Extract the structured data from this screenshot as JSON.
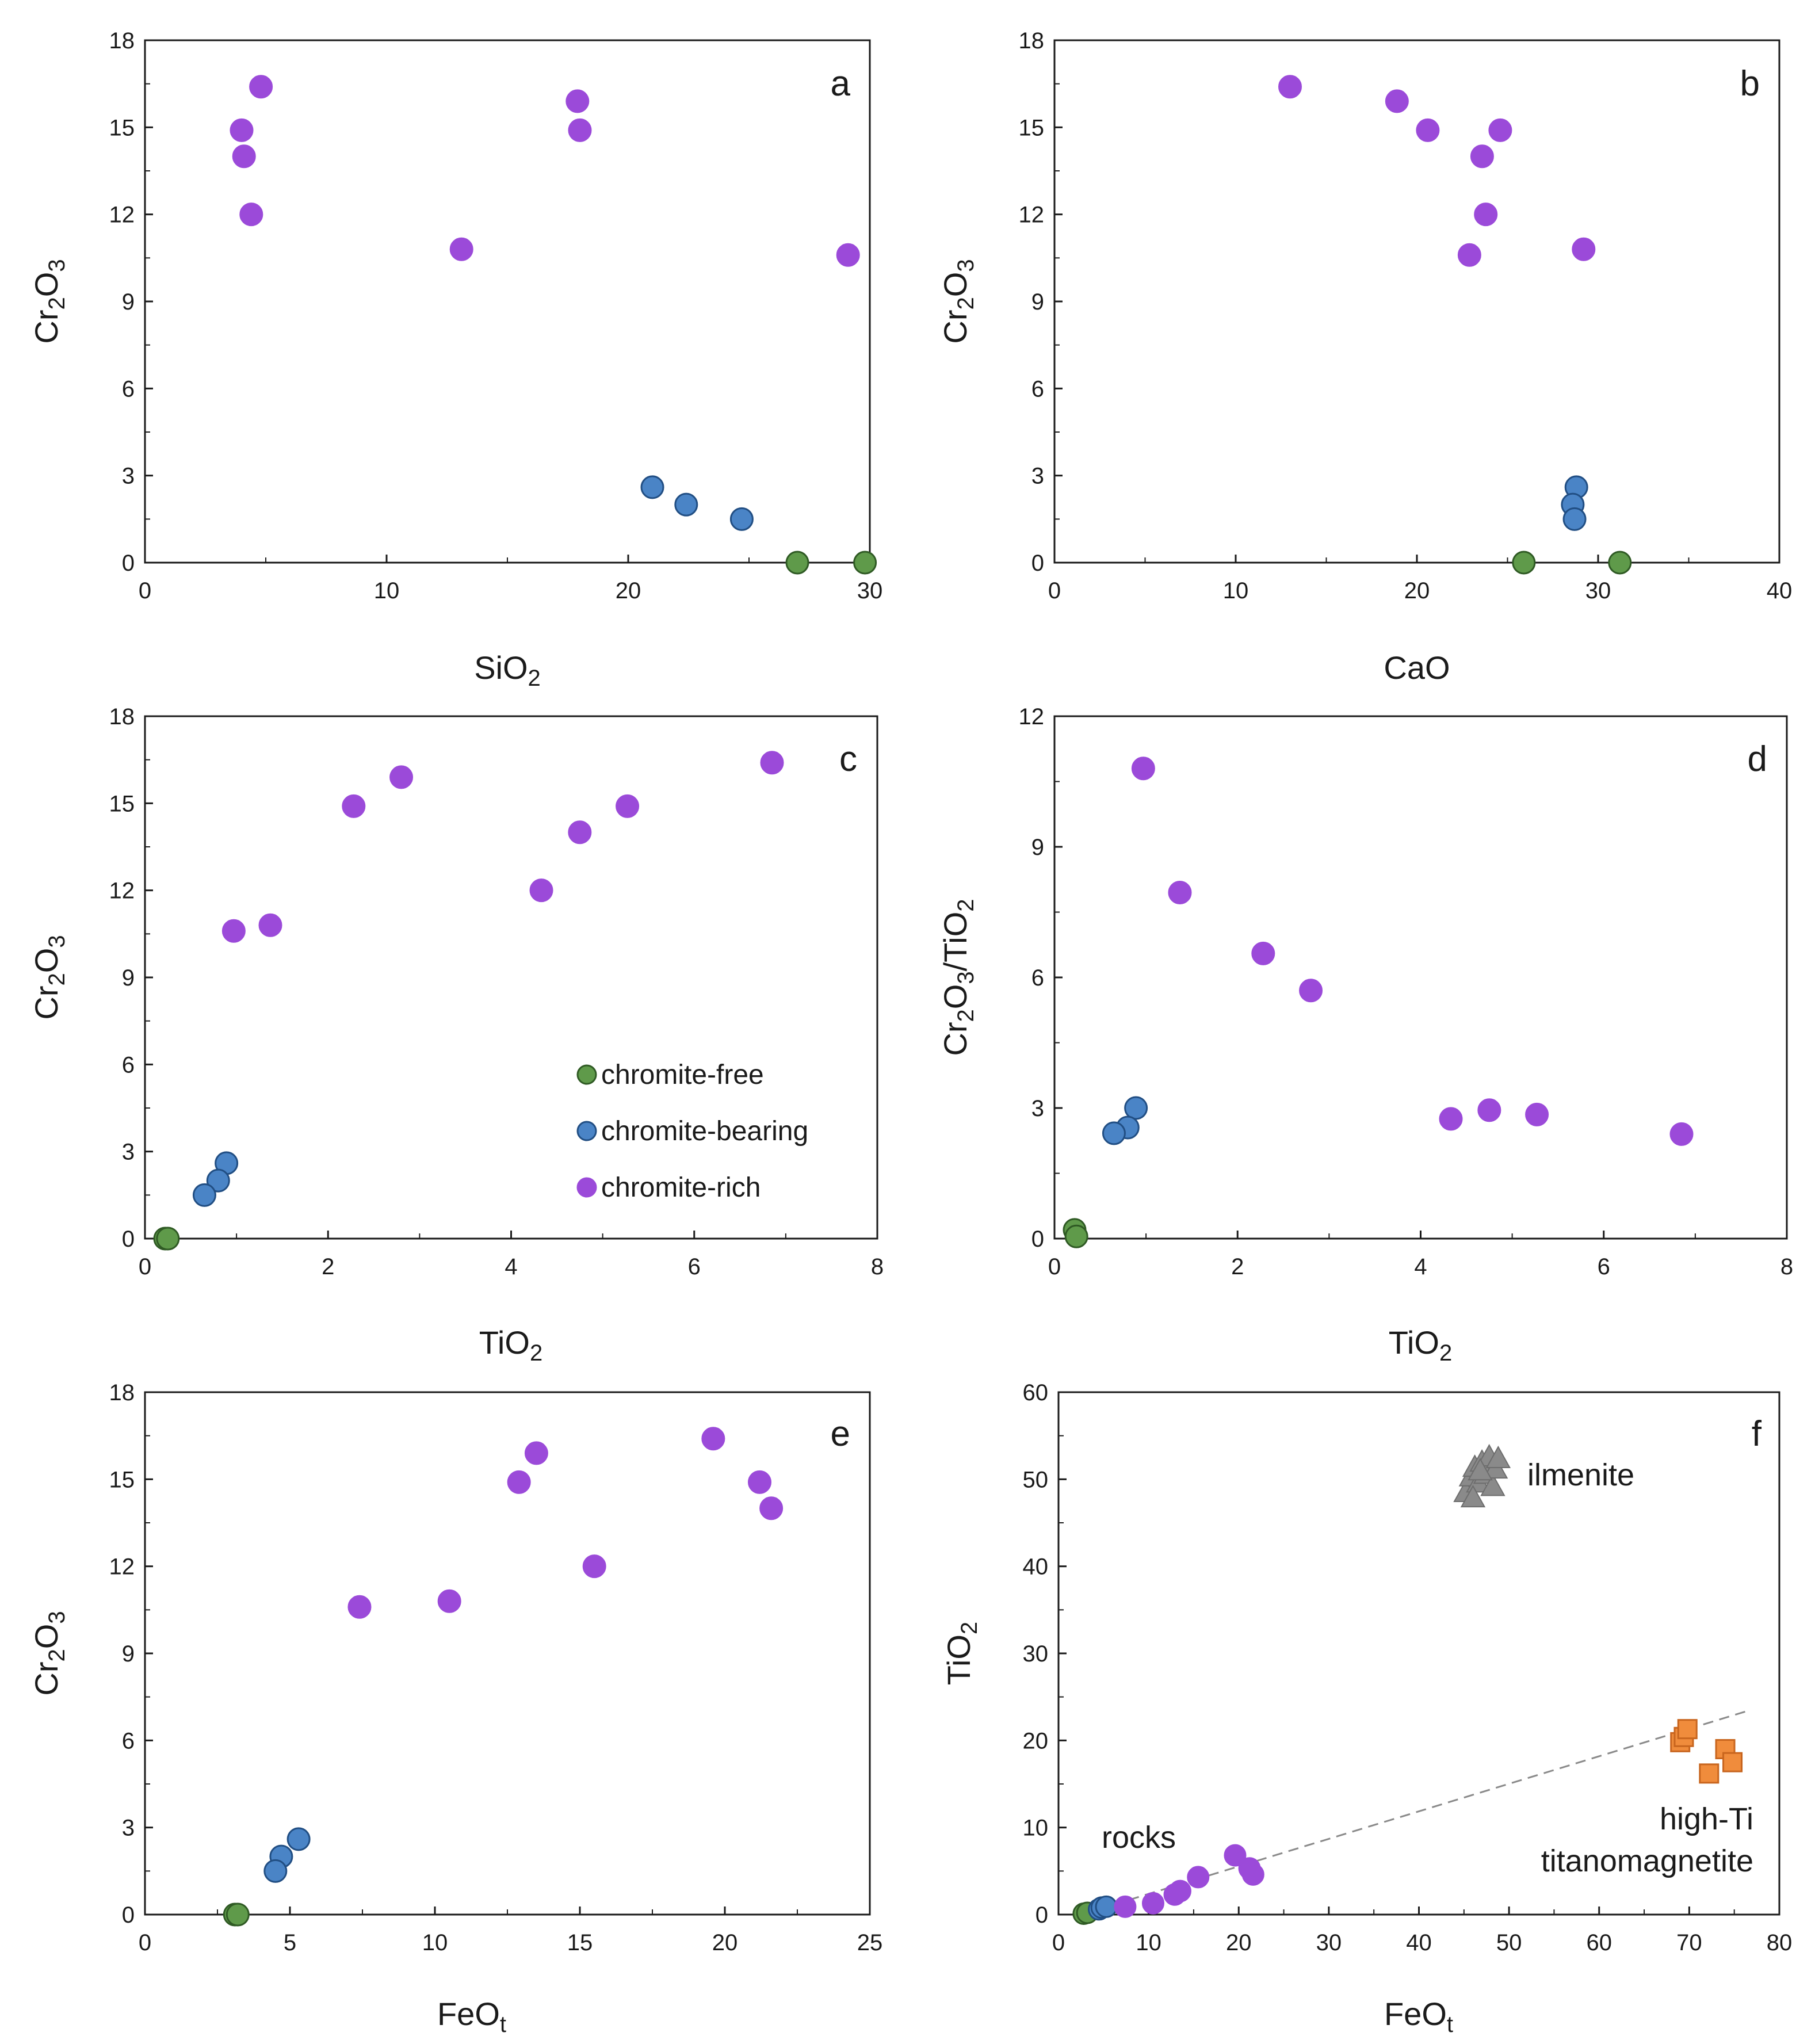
{
  "colors": {
    "chromite_free": "#5f9a4a",
    "chromite_bearing": "#4a84c6",
    "chromite_rich": "#9b4ad9",
    "ilmenite": "#8a8a8a",
    "titanomagnetite": "#f08c3c",
    "trendline": "#8a8a8a"
  },
  "legend": {
    "chromite_free": "chromite-free",
    "chromite_bearing": "chromite-bearing",
    "chromite_rich": "chromite-rich"
  },
  "chart_data": [
    {
      "panel": "a",
      "type": "scatter",
      "xlabel": "SiO2",
      "ylabel": "Cr2O3",
      "xlim": [
        0,
        30
      ],
      "ylim": [
        0,
        18
      ],
      "xticks": [
        0,
        10,
        20,
        30
      ],
      "yticks": [
        0,
        3,
        6,
        9,
        12,
        15,
        18
      ],
      "series": [
        {
          "name": "chromite-free",
          "points": [
            [
              27.0,
              0.0
            ],
            [
              29.8,
              0.0
            ]
          ]
        },
        {
          "name": "chromite-bearing",
          "points": [
            [
              21.0,
              2.6
            ],
            [
              22.4,
              2.0
            ],
            [
              24.7,
              1.5
            ]
          ]
        },
        {
          "name": "chromite-rich",
          "points": [
            [
              4.8,
              16.4
            ],
            [
              4.0,
              14.9
            ],
            [
              4.1,
              14.0
            ],
            [
              4.4,
              12.0
            ],
            [
              17.9,
              15.9
            ],
            [
              18.0,
              14.9
            ],
            [
              13.1,
              10.8
            ],
            [
              29.1,
              10.6
            ]
          ]
        }
      ]
    },
    {
      "panel": "b",
      "type": "scatter",
      "xlabel": "CaO",
      "ylabel": "Cr2O3",
      "xlim": [
        0,
        40
      ],
      "ylim": [
        0,
        18
      ],
      "xticks": [
        0,
        10,
        20,
        30,
        40
      ],
      "yticks": [
        0,
        3,
        6,
        9,
        12,
        15,
        18
      ],
      "series": [
        {
          "name": "chromite-free",
          "points": [
            [
              25.9,
              0.0
            ],
            [
              31.2,
              0.0
            ]
          ]
        },
        {
          "name": "chromite-bearing",
          "points": [
            [
              28.8,
              2.6
            ],
            [
              28.6,
              2.0
            ],
            [
              28.7,
              1.5
            ]
          ]
        },
        {
          "name": "chromite-rich",
          "points": [
            [
              13.0,
              16.4
            ],
            [
              18.9,
              15.9
            ],
            [
              20.6,
              14.9
            ],
            [
              24.6,
              14.9
            ],
            [
              23.6,
              14.0
            ],
            [
              23.8,
              12.0
            ],
            [
              22.9,
              10.6
            ],
            [
              29.2,
              10.8
            ]
          ]
        }
      ]
    },
    {
      "panel": "c",
      "type": "scatter",
      "xlabel": "TiO2",
      "ylabel": "Cr2O3",
      "xlim": [
        0,
        8
      ],
      "ylim": [
        0,
        18
      ],
      "xticks": [
        0,
        2,
        4,
        6,
        8
      ],
      "yticks": [
        0,
        3,
        6,
        9,
        12,
        15,
        18
      ],
      "legend_position": "bottom-right",
      "series": [
        {
          "name": "chromite-free",
          "points": [
            [
              0.22,
              0.0
            ],
            [
              0.25,
              0.0
            ]
          ]
        },
        {
          "name": "chromite-bearing",
          "points": [
            [
              0.89,
              2.6
            ],
            [
              0.8,
              2.0
            ],
            [
              0.65,
              1.5
            ]
          ]
        },
        {
          "name": "chromite-rich",
          "points": [
            [
              6.85,
              16.4
            ],
            [
              2.8,
              15.9
            ],
            [
              2.28,
              14.9
            ],
            [
              5.27,
              14.9
            ],
            [
              4.75,
              14.0
            ],
            [
              4.33,
              12.0
            ],
            [
              0.97,
              10.6
            ],
            [
              1.37,
              10.8
            ]
          ]
        }
      ]
    },
    {
      "panel": "d",
      "type": "scatter",
      "xlabel": "TiO2",
      "ylabel": "Cr2O3/TiO2",
      "xlim": [
        0,
        8
      ],
      "ylim": [
        0,
        12
      ],
      "xticks": [
        0,
        2,
        4,
        6,
        8
      ],
      "yticks": [
        0,
        3,
        6,
        9,
        12
      ],
      "series": [
        {
          "name": "chromite-free",
          "points": [
            [
              0.22,
              0.2
            ],
            [
              0.24,
              0.05
            ]
          ]
        },
        {
          "name": "chromite-bearing",
          "points": [
            [
              0.89,
              3.0
            ],
            [
              0.8,
              2.55
            ],
            [
              0.65,
              2.42
            ]
          ]
        },
        {
          "name": "chromite-rich",
          "points": [
            [
              0.97,
              10.8
            ],
            [
              1.37,
              7.95
            ],
            [
              2.28,
              6.55
            ],
            [
              2.8,
              5.7
            ],
            [
              4.33,
              2.75
            ],
            [
              4.75,
              2.95
            ],
            [
              5.27,
              2.85
            ],
            [
              6.85,
              2.4
            ]
          ]
        }
      ]
    },
    {
      "panel": "e",
      "type": "scatter",
      "xlabel": "FeOt",
      "ylabel": "Cr2O3",
      "xlim": [
        0,
        25
      ],
      "ylim": [
        0,
        18
      ],
      "xticks": [
        0,
        5,
        10,
        15,
        20,
        25
      ],
      "yticks": [
        0,
        3,
        6,
        9,
        12,
        15,
        18
      ],
      "series": [
        {
          "name": "chromite-free",
          "points": [
            [
              3.1,
              0.0
            ],
            [
              3.2,
              0.0
            ]
          ]
        },
        {
          "name": "chromite-bearing",
          "points": [
            [
              5.3,
              2.6
            ],
            [
              4.7,
              2.0
            ],
            [
              4.5,
              1.5
            ]
          ]
        },
        {
          "name": "chromite-rich",
          "points": [
            [
              19.6,
              16.4
            ],
            [
              13.5,
              15.9
            ],
            [
              12.9,
              14.9
            ],
            [
              21.2,
              14.9
            ],
            [
              21.6,
              14.0
            ],
            [
              15.5,
              12.0
            ],
            [
              7.4,
              10.6
            ],
            [
              10.5,
              10.8
            ]
          ]
        }
      ]
    },
    {
      "panel": "f",
      "type": "scatter",
      "xlabel": "FeOt",
      "ylabel": "TiO2",
      "xlim": [
        0,
        80
      ],
      "ylim": [
        0,
        60
      ],
      "xticks": [
        0,
        10,
        20,
        30,
        40,
        50,
        60,
        70,
        80
      ],
      "yticks": [
        0,
        10,
        20,
        30,
        40,
        50,
        60
      ],
      "annotations": [
        "ilmenite",
        "rocks",
        "high-Ti",
        "titanomagnetite"
      ],
      "trendline": [
        [
          2.5,
          0.0
        ],
        [
          76.5,
          23.4
        ]
      ],
      "series": [
        {
          "name": "chromite-free",
          "points": [
            [
              2.8,
              0.1
            ],
            [
              3.2,
              0.2
            ]
          ]
        },
        {
          "name": "chromite-bearing",
          "points": [
            [
              4.5,
              0.6
            ],
            [
              4.8,
              0.8
            ],
            [
              5.3,
              0.9
            ]
          ]
        },
        {
          "name": "chromite-rich",
          "points": [
            [
              7.4,
              0.9
            ],
            [
              10.5,
              1.3
            ],
            [
              12.9,
              2.3
            ],
            [
              13.5,
              2.7
            ],
            [
              15.5,
              4.3
            ],
            [
              19.6,
              6.8
            ],
            [
              21.2,
              5.3
            ],
            [
              21.6,
              4.6
            ]
          ]
        },
        {
          "name": "ilmenite",
          "points": [
            [
              45.2,
              48.5
            ],
            [
              45.8,
              50.3
            ],
            [
              46.2,
              51.4
            ],
            [
              46.6,
              49.6
            ],
            [
              47.0,
              52.0
            ],
            [
              47.4,
              50.6
            ],
            [
              47.8,
              52.6
            ],
            [
              48.2,
              49.2
            ],
            [
              48.5,
              51.2
            ],
            [
              46.0,
              47.9
            ],
            [
              48.8,
              52.4
            ],
            [
              46.8,
              51.0
            ]
          ]
        },
        {
          "name": "titanomagnetite",
          "points": [
            [
              69.0,
              19.8
            ],
            [
              69.4,
              20.4
            ],
            [
              69.8,
              21.3
            ],
            [
              74.0,
              19.0
            ],
            [
              74.8,
              17.5
            ],
            [
              72.2,
              16.2
            ]
          ]
        }
      ]
    }
  ]
}
